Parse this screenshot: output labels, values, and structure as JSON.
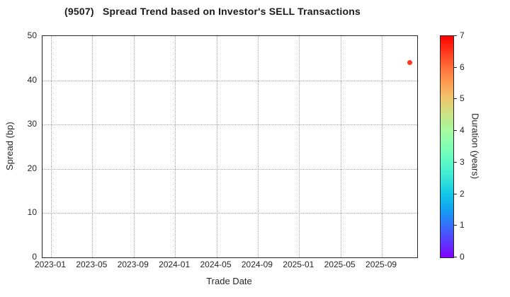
{
  "chart_data": {
    "type": "scatter",
    "title": "(9507)   Spread Trend based on Investor's SELL Transactions",
    "xlabel": "Trade Date",
    "ylabel": "Spread (bp)",
    "ylim": [
      0,
      50
    ],
    "y_ticks": [
      0,
      10,
      20,
      30,
      40,
      50
    ],
    "x_tick_labels": [
      "2023-01",
      "2023-05",
      "2023-09",
      "2024-01",
      "2024-05",
      "2024-09",
      "2025-01",
      "2025-05",
      "2025-09"
    ],
    "grid": "dotted",
    "legend_position": "none",
    "points": [
      {
        "trade_date": "2025-11-22",
        "spread_bp": 44,
        "duration_years": 6.5
      }
    ],
    "colorbar": {
      "label": "Duration (years)",
      "range": [
        0,
        7
      ],
      "ticks": [
        0,
        1,
        2,
        3,
        4,
        5,
        6,
        7
      ],
      "colormap": "rainbow"
    }
  },
  "colors": {
    "background": "#ffffff",
    "text": "#262626",
    "title_text": "#1a1a1a",
    "grid": "#a0a0a0",
    "frame": "#262626",
    "point": "#ff391d",
    "colorbar_bottom": "#8000ff",
    "colorbar_top": "#ff0000"
  }
}
